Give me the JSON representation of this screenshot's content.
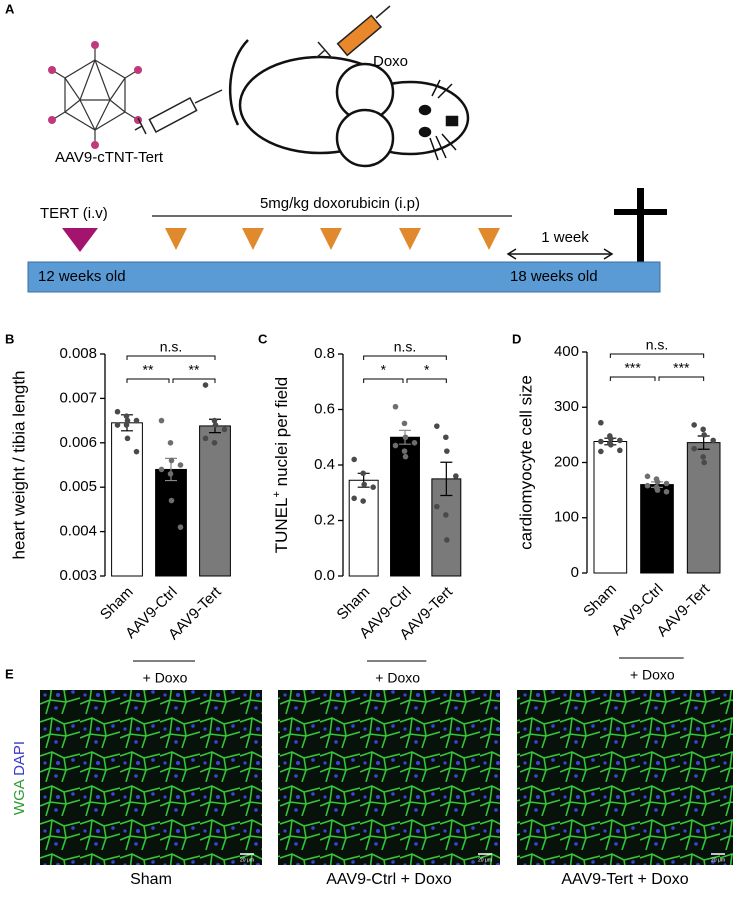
{
  "diagram": {
    "panel": "A",
    "vector": "AAV9-cTNT-Tert",
    "drug": "Doxo",
    "tert_injection": "TERT (i.v)",
    "doxo_regimen": "5mg/kg doxorubicin (i.p)",
    "interval": "1 week",
    "start_age": "12 weeks old",
    "end_age": "18 weeks old"
  },
  "chart_data": [
    {
      "type": "bar",
      "panel": "B",
      "ylabel": "heart weight / tibia length",
      "categories": [
        "Sham",
        "AAV9-Ctrl",
        "AAV9-Tert"
      ],
      "colors": [
        "#ffffff",
        "#000000",
        "#7a7a7a"
      ],
      "values": [
        0.00645,
        0.0054,
        0.00638
      ],
      "errors": [
        0.00018,
        0.00025,
        0.00015
      ],
      "points": [
        [
          0.0067,
          0.0066,
          0.0065,
          0.0065,
          0.0064,
          0.0064,
          0.0061,
          0.0058
        ],
        [
          0.0065,
          0.006,
          0.0056,
          0.0055,
          0.0054,
          0.0053,
          0.0047,
          0.0041
        ],
        [
          0.0073,
          0.0065,
          0.0064,
          0.0063,
          0.0061,
          0.006
        ]
      ],
      "ylim": [
        0.003,
        0.008
      ],
      "yticks": [
        0.003,
        0.004,
        0.005,
        0.006,
        0.007,
        0.008
      ],
      "significance": [
        "n.s.",
        "**",
        "**"
      ],
      "group_label": "+ Doxo"
    },
    {
      "type": "bar",
      "panel": "C",
      "ylabel": [
        "TUNEL",
        "+",
        " nuclei per field"
      ],
      "categories": [
        "Sham",
        "AAV9-Ctrl",
        "AAV9-Tert"
      ],
      "colors": [
        "#ffffff",
        "#000000",
        "#7a7a7a"
      ],
      "values": [
        0.345,
        0.5,
        0.35
      ],
      "errors": [
        0.025,
        0.025,
        0.06
      ],
      "points": [
        [
          0.42,
          0.37,
          0.33,
          0.32,
          0.28,
          0.27
        ],
        [
          0.61,
          0.55,
          0.5,
          0.48,
          0.47,
          0.45,
          0.43
        ],
        [
          0.54,
          0.5,
          0.45,
          0.36,
          0.25,
          0.22,
          0.13
        ]
      ],
      "ylim": [
        0,
        0.8
      ],
      "yticks": [
        {
          "value": 0,
          "label": "0.0"
        },
        0.2,
        0.4,
        0.6,
        0.8
      ],
      "significance": [
        "n.s.",
        "*",
        "*"
      ],
      "group_label": "+ Doxo"
    },
    {
      "type": "bar",
      "panel": "D",
      "ylabel": "cardiomyocyte cell size",
      "categories": [
        "Sham",
        "AAV9-Ctrl",
        "AAV9-Tert"
      ],
      "colors": [
        "#ffffff",
        "#000000",
        "#7a7a7a"
      ],
      "values": [
        238,
        160,
        236
      ],
      "errors": [
        6,
        5,
        12
      ],
      "points": [
        [
          272,
          248,
          243,
          240,
          238,
          235,
          232,
          222,
          220
        ],
        [
          175,
          170,
          165,
          162,
          158,
          155,
          150,
          147
        ],
        [
          268,
          260,
          250,
          240,
          225,
          210,
          200
        ]
      ],
      "ylim": [
        0,
        400
      ],
      "yticks": [
        0,
        100,
        200,
        300,
        400
      ],
      "significance": [
        "n.s.",
        "***",
        "***"
      ],
      "group_label": "+ Doxo"
    }
  ],
  "micrographs": {
    "panel": "E",
    "stain_wga": "WGA",
    "stain_dapi": "DAPI",
    "captions": [
      "Sham",
      "AAV9-Ctrl + Doxo",
      "AAV9-Tert + Doxo"
    ],
    "scale_bars": [
      "20 μm",
      "20 μm",
      "20 μm"
    ]
  }
}
